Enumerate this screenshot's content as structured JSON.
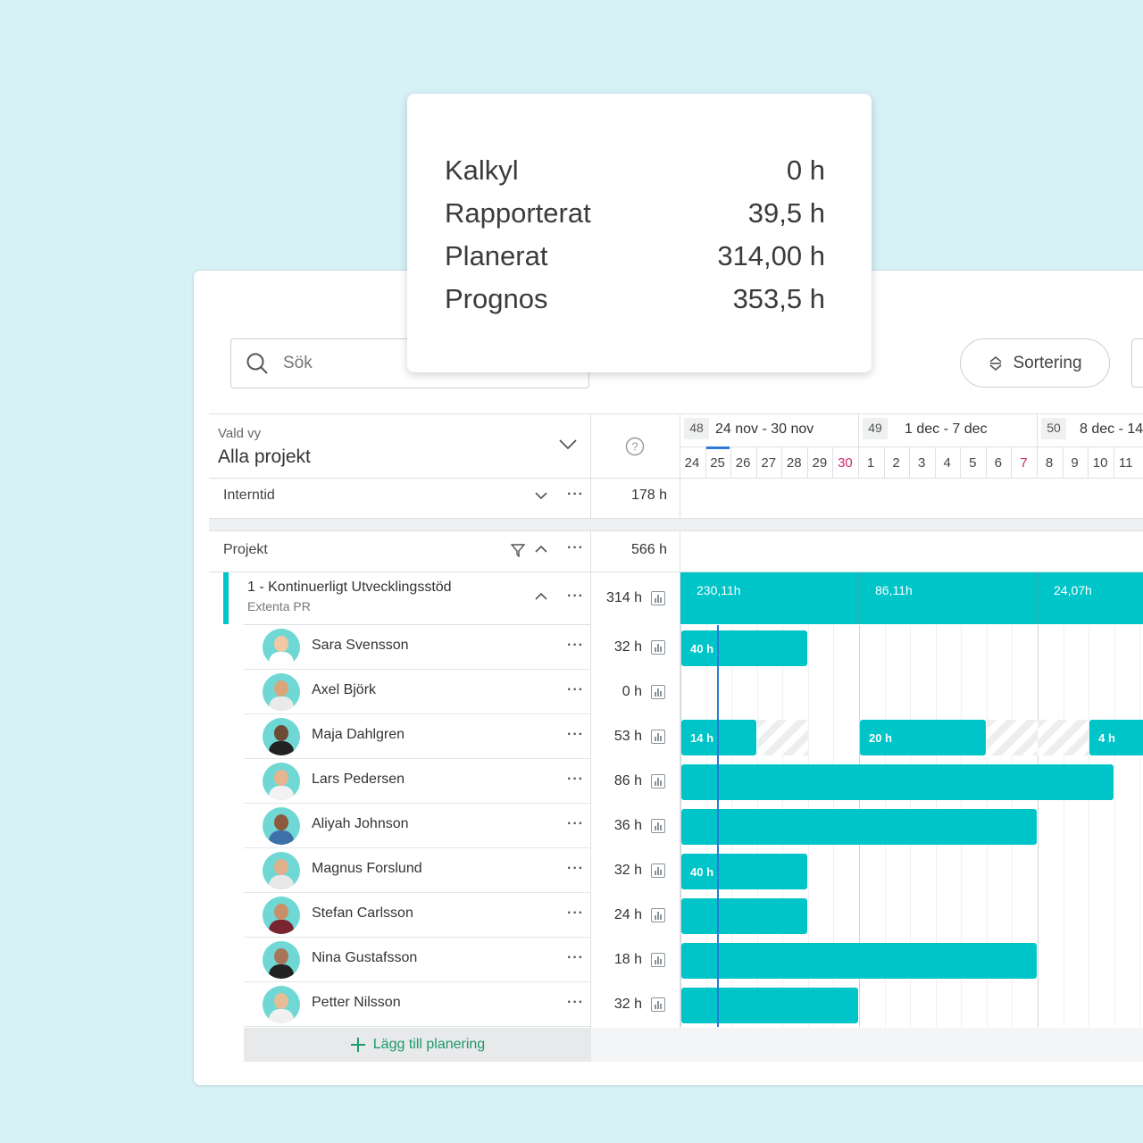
{
  "tooltip": {
    "rows": [
      {
        "label": "Kalkyl",
        "value": "0 h"
      },
      {
        "label": "Rapporterat",
        "value": "39,5 h"
      },
      {
        "label": "Planerat",
        "value": "314,00 h"
      },
      {
        "label": "Prognos",
        "value": "353,5 h"
      }
    ]
  },
  "toolbar": {
    "search_placeholder": "Sök",
    "sort_label": "Sortering"
  },
  "view": {
    "label": "Vald vy",
    "value": "Alla projekt"
  },
  "weeks": [
    {
      "num": "48",
      "range": "24 nov - 30 nov",
      "days": [
        "24",
        "25",
        "26",
        "27",
        "28",
        "29",
        "30"
      ]
    },
    {
      "num": "49",
      "range": "1 dec - 7 dec",
      "days": [
        "1",
        "2",
        "3",
        "4",
        "5",
        "6",
        "7"
      ]
    },
    {
      "num": "50",
      "range": "8 dec - 14",
      "days": [
        "8",
        "9",
        "10",
        "11"
      ]
    }
  ],
  "sections": {
    "internal": {
      "label": "Interntid",
      "hours": "178 h"
    },
    "projects": {
      "label": "Projekt",
      "hours": "566 h"
    }
  },
  "project": {
    "title": "1 - Kontinuerligt Utvecklingsstöd",
    "client": "Extenta PR",
    "hours": "314 h",
    "week_totals": [
      "230,11h",
      "86,11h",
      "24,07h"
    ]
  },
  "people": [
    {
      "name": "Sara Svensson",
      "hours": "32 h",
      "bars": [
        {
          "label": "40 h"
        }
      ]
    },
    {
      "name": "Axel Björk",
      "hours": "0 h",
      "bars": []
    },
    {
      "name": "Maja Dahlgren",
      "hours": "53 h",
      "bars": [
        {
          "label": "14 h"
        },
        {
          "label": "20 h"
        },
        {
          "label": "4 h"
        }
      ]
    },
    {
      "name": "Lars Pedersen",
      "hours": "86 h",
      "bars": [
        {
          "label": ""
        }
      ]
    },
    {
      "name": "Aliyah Johnson",
      "hours": "36 h",
      "bars": [
        {
          "label": ""
        }
      ]
    },
    {
      "name": "Magnus Forslund",
      "hours": "32 h",
      "bars": [
        {
          "label": "40 h"
        }
      ]
    },
    {
      "name": "Stefan Carlsson",
      "hours": "24 h",
      "bars": [
        {
          "label": ""
        }
      ]
    },
    {
      "name": "Nina Gustafsson",
      "hours": "18 h",
      "bars": [
        {
          "label": ""
        }
      ]
    },
    {
      "name": "Petter Nilsson",
      "hours": "32 h",
      "bars": [
        {
          "label": ""
        }
      ]
    }
  ],
  "add_planning_label": "Lägg till planering",
  "colors": {
    "accent": "#00c5c8",
    "weekend": "#d0246e",
    "add_green": "#1d9a6c"
  }
}
